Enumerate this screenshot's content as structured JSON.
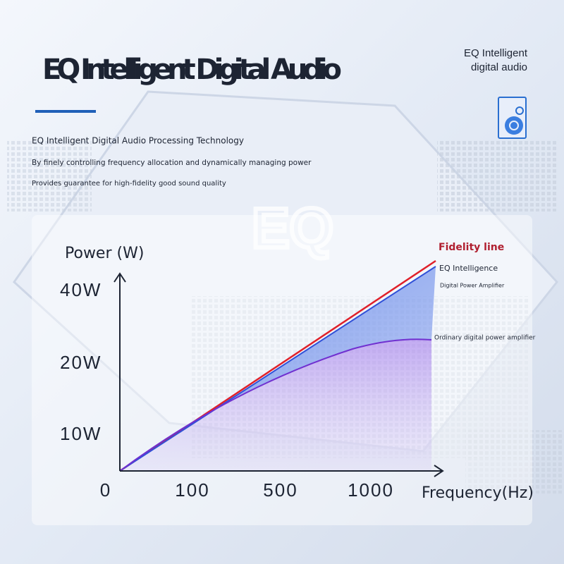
{
  "header": {
    "title": "EQ Intelligent Digital Audio",
    "badge": [
      "EQ Intelligent",
      "digital audio"
    ],
    "lines": [
      "EQ Intelligent Digital Audio Processing Technology",
      "By finely controlling frequency allocation and dynamically managing power",
      "Provides guarantee for high-fidelity good sound quality"
    ]
  },
  "panel": {
    "watermark": "EQ",
    "y_axis_title": "Power (W)",
    "x_axis_title": "Frequency(Hz)",
    "yticks": [
      "40W",
      "20W",
      "10W"
    ],
    "xticks": [
      "0",
      "100",
      "500",
      "1000"
    ],
    "labels": {
      "fidelity": "Fidelity line",
      "eq_1": "EQ Intelligence",
      "eq_2": "Digital Power Amplifier",
      "ordinary": "Ordinary digital power amplifier"
    }
  }
}
